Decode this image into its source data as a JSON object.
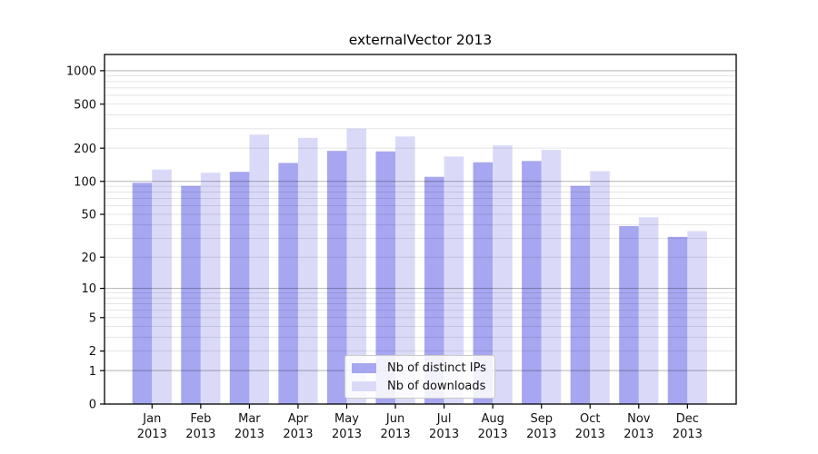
{
  "chart_data": {
    "type": "bar",
    "title": "externalVector 2013",
    "categories": [
      "Jan",
      "Feb",
      "Mar",
      "Apr",
      "May",
      "Jun",
      "Jul",
      "Aug",
      "Sep",
      "Oct",
      "Nov",
      "Dec"
    ],
    "category_year": "2013",
    "series": [
      {
        "name": "Nb of distinct IPs",
        "color": "#a6a6f1",
        "values": [
          97,
          91,
          122,
          147,
          189,
          187,
          110,
          149,
          153,
          91,
          39,
          31
        ]
      },
      {
        "name": "Nb of downloads",
        "color": "#dadaf8",
        "values": [
          128,
          120,
          265,
          248,
          300,
          255,
          168,
          212,
          193,
          124,
          47,
          35
        ]
      }
    ],
    "xlabel": "",
    "ylabel": "",
    "y_axis": {
      "scale": "log1p",
      "range": [
        0,
        1400
      ],
      "ticks": [
        0,
        1,
        2,
        5,
        10,
        20,
        50,
        100,
        200,
        500,
        1000
      ],
      "major_gridlines": [
        1,
        10,
        100,
        1000
      ],
      "minor_gridlines": [
        2,
        3,
        4,
        5,
        6,
        7,
        8,
        9,
        20,
        30,
        40,
        50,
        60,
        70,
        80,
        90,
        200,
        300,
        400,
        500,
        600,
        700,
        800,
        900
      ]
    },
    "grid": true,
    "legend_position": "lower center",
    "colors": {
      "bar_distinct_ips": "#a6a6f1",
      "bar_downloads": "#dadaf8",
      "grid_major": "rgba(0,0,0,0.30)",
      "grid_minor": "rgba(0,0,0,0.10)",
      "axis": "#000000"
    }
  }
}
